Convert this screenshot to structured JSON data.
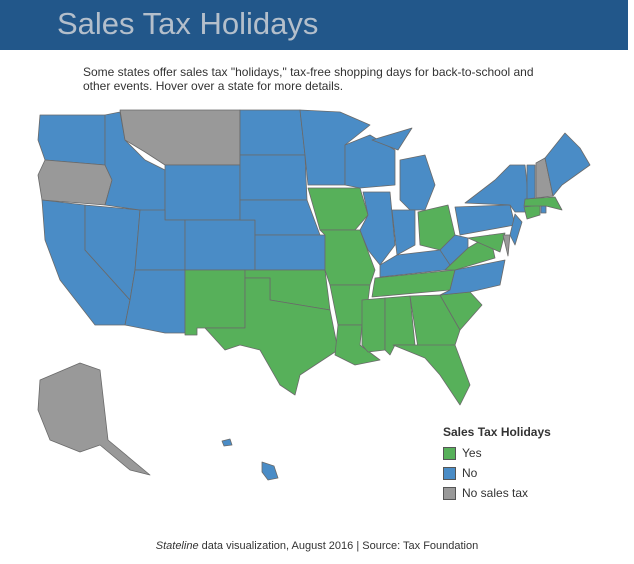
{
  "header": {
    "title": "Sales Tax Holidays"
  },
  "intro": "Some states offer sales tax \"holidays,\" tax-free shopping days for back-to-school and other events. Hover over a state for more details.",
  "colors": {
    "yes": "#57b05a",
    "no": "#4a8cc6",
    "none": "#999999"
  },
  "legend": {
    "title": "Sales Tax Holidays",
    "items": [
      {
        "key": "yes",
        "label": "Yes"
      },
      {
        "key": "no",
        "label": "No"
      },
      {
        "key": "none",
        "label": "No sales tax"
      }
    ]
  },
  "states": {
    "WA": "no",
    "OR": "none",
    "CA": "no",
    "NV": "no",
    "ID": "no",
    "MT": "none",
    "WY": "no",
    "UT": "no",
    "AZ": "no",
    "CO": "no",
    "NM": "yes",
    "ND": "no",
    "SD": "no",
    "NE": "no",
    "KS": "no",
    "OK": "yes",
    "TX": "yes",
    "MN": "no",
    "IA": "yes",
    "MO": "yes",
    "AR": "yes",
    "LA": "yes",
    "WI": "no",
    "IL": "no",
    "MI": "no",
    "MIU": "no",
    "IN": "no",
    "OH": "yes",
    "KY": "no",
    "TN": "yes",
    "MS": "yes",
    "AL": "yes",
    "GA": "yes",
    "FL": "yes",
    "SC": "yes",
    "NC": "no",
    "VA": "yes",
    "WV": "no",
    "PA": "no",
    "NY": "no",
    "MD": "yes",
    "DE": "none",
    "NJ": "no",
    "CT": "yes",
    "RI": "no",
    "MA": "yes",
    "VT": "no",
    "NH": "none",
    "ME": "no",
    "AK": "none",
    "HI": "no",
    "HI2": "no"
  },
  "footer": {
    "source_italic": "Stateline",
    "source_rest": " data visualization, August 2016 | Source: Tax Foundation"
  }
}
